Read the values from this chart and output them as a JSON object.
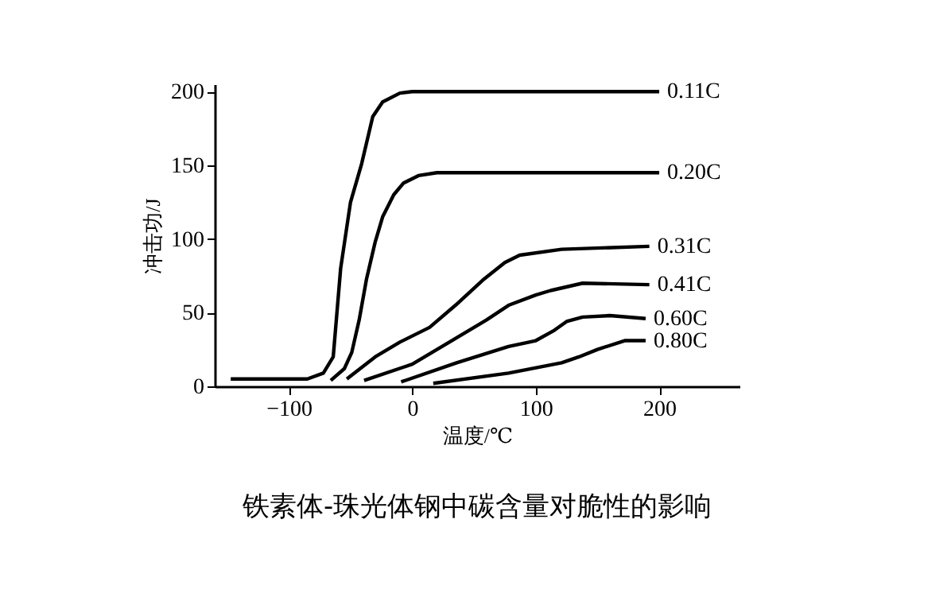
{
  "chart_data": {
    "type": "line",
    "xlabel": "温度/℃",
    "ylabel": "冲击功/J",
    "xlim": [
      -160,
      265
    ],
    "ylim": [
      0,
      205
    ],
    "xticks": [
      -100,
      0,
      100,
      200
    ],
    "yticks": [
      0,
      50,
      100,
      150,
      200
    ],
    "grid": false,
    "annotations": [
      "铁素体-珠光体钢中碳含量对脆性的影响"
    ],
    "series": [
      {
        "name": "0.11C",
        "color": "#000000",
        "x": [
          -147,
          -85,
          -72,
          -64,
          -58,
          -50,
          -41,
          -32,
          -24,
          -10,
          0,
          200
        ],
        "values": [
          5,
          5,
          9,
          20,
          80,
          125,
          151,
          183,
          193,
          199,
          200,
          200
        ]
      },
      {
        "name": "0.20C",
        "color": "#000000",
        "x": [
          -66,
          -55,
          -49,
          -43,
          -37,
          -30,
          -24,
          -15,
          -7,
          5,
          20,
          200
        ],
        "values": [
          4,
          12,
          23,
          45,
          73,
          98,
          115,
          130,
          138,
          143,
          145,
          145
        ]
      },
      {
        "name": "0.31C",
        "color": "#000000",
        "x": [
          -53,
          -30,
          -10,
          14,
          35,
          57,
          75,
          87,
          121,
          192
        ],
        "values": [
          5,
          20,
          30,
          40,
          55,
          72,
          84,
          89,
          93,
          95
        ]
      },
      {
        "name": "0.41C",
        "color": "#000000",
        "x": [
          -39,
          0,
          36,
          60,
          78,
          100,
          112,
          138,
          192
        ],
        "values": [
          4,
          15,
          33,
          45,
          55,
          62,
          65,
          70,
          69
        ]
      },
      {
        "name": "0.60C",
        "color": "#000000",
        "x": [
          -9,
          36,
          78,
          100,
          115,
          125,
          138,
          160,
          189
        ],
        "values": [
          3,
          16,
          27,
          31,
          38,
          44,
          47,
          48,
          46
        ]
      },
      {
        "name": "0.80C",
        "color": "#000000",
        "x": [
          17,
          78,
          121,
          135,
          150,
          172,
          189
        ],
        "values": [
          2,
          9,
          16,
          20,
          25,
          31,
          31
        ]
      }
    ]
  }
}
